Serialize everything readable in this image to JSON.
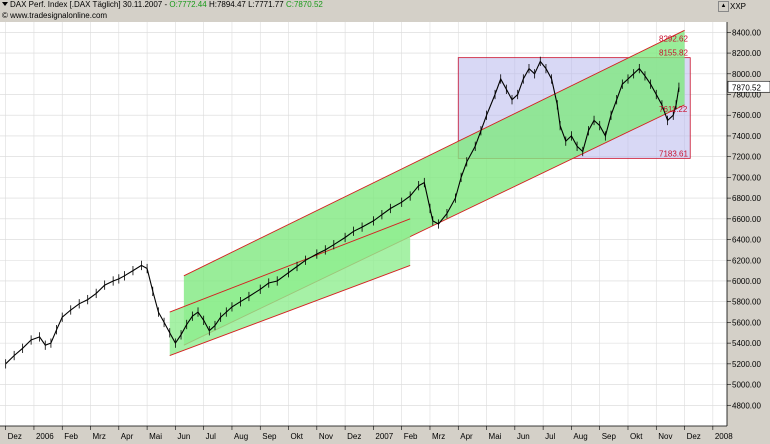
{
  "header": {
    "title": "DAX Perf. Index [.DAX  Täglich] 30.11.2007 - ",
    "open": "O:7772.44",
    "high": "H:7894.47",
    "low": "L:7771.77",
    "close": "C:7870.52",
    "copyright": "© www.tradesignalonline.com",
    "open_color": "#1a9a1a",
    "close_color": "#1a9a1a"
  },
  "scale_label": "XXP",
  "scroll_up_label": "▲",
  "last_price_label": "7870.52",
  "chart_data": {
    "type": "line",
    "title": "DAX Perf. Index [.DAX  Täglich] 30.11.2007",
    "ylim": [
      4600,
      8500
    ],
    "y_ticks": [
      4800,
      5000,
      5200,
      5400,
      5600,
      5800,
      6000,
      6200,
      6400,
      6600,
      6800,
      7000,
      7200,
      7400,
      7600,
      7800,
      8000,
      8200,
      8400
    ],
    "x_ticks": [
      {
        "label": "Dez",
        "t": 0
      },
      {
        "label": "2006",
        "t": 1
      },
      {
        "label": "Feb",
        "t": 2
      },
      {
        "label": "Mrz",
        "t": 3
      },
      {
        "label": "Apr",
        "t": 4
      },
      {
        "label": "Mai",
        "t": 5
      },
      {
        "label": "Jun",
        "t": 6
      },
      {
        "label": "Jul",
        "t": 7
      },
      {
        "label": "Aug",
        "t": 8
      },
      {
        "label": "Sep",
        "t": 9
      },
      {
        "label": "Okt",
        "t": 10
      },
      {
        "label": "Nov",
        "t": 11
      },
      {
        "label": "Dez",
        "t": 12
      },
      {
        "label": "2007",
        "t": 13
      },
      {
        "label": "Feb",
        "t": 14
      },
      {
        "label": "Mrz",
        "t": 15
      },
      {
        "label": "Apr",
        "t": 16
      },
      {
        "label": "Mai",
        "t": 17
      },
      {
        "label": "Jun",
        "t": 18
      },
      {
        "label": "Jul",
        "t": 19
      },
      {
        "label": "Aug",
        "t": 20
      },
      {
        "label": "Sep",
        "t": 21
      },
      {
        "label": "Okt",
        "t": 22
      },
      {
        "label": "Nov",
        "t": 23
      },
      {
        "label": "Dez",
        "t": 24
      },
      {
        "label": "2008",
        "t": 25
      }
    ],
    "series": [
      {
        "values": [
          [
            0,
            5200
          ],
          [
            0.3,
            5280
          ],
          [
            0.6,
            5350
          ],
          [
            0.9,
            5430
          ],
          [
            1.2,
            5460
          ],
          [
            1.4,
            5380
          ],
          [
            1.6,
            5400
          ],
          [
            1.8,
            5530
          ],
          [
            2.0,
            5650
          ],
          [
            2.3,
            5720
          ],
          [
            2.6,
            5780
          ],
          [
            2.9,
            5820
          ],
          [
            3.2,
            5880
          ],
          [
            3.5,
            5960
          ],
          [
            3.8,
            6000
          ],
          [
            4.0,
            6020
          ],
          [
            4.2,
            6050
          ],
          [
            4.5,
            6100
          ],
          [
            4.8,
            6150
          ],
          [
            5.0,
            6120
          ],
          [
            5.2,
            5900
          ],
          [
            5.4,
            5700
          ],
          [
            5.6,
            5600
          ],
          [
            5.8,
            5500
          ],
          [
            6.0,
            5400
          ],
          [
            6.2,
            5480
          ],
          [
            6.4,
            5580
          ],
          [
            6.6,
            5660
          ],
          [
            6.8,
            5700
          ],
          [
            7.0,
            5620
          ],
          [
            7.2,
            5520
          ],
          [
            7.4,
            5570
          ],
          [
            7.6,
            5650
          ],
          [
            7.8,
            5700
          ],
          [
            8.0,
            5750
          ],
          [
            8.3,
            5800
          ],
          [
            8.6,
            5850
          ],
          [
            9.0,
            5920
          ],
          [
            9.3,
            5980
          ],
          [
            9.6,
            6000
          ],
          [
            10.0,
            6080
          ],
          [
            10.3,
            6140
          ],
          [
            10.6,
            6200
          ],
          [
            11.0,
            6260
          ],
          [
            11.3,
            6300
          ],
          [
            11.6,
            6350
          ],
          [
            12.0,
            6420
          ],
          [
            12.3,
            6480
          ],
          [
            12.6,
            6520
          ],
          [
            13.0,
            6580
          ],
          [
            13.3,
            6640
          ],
          [
            13.6,
            6700
          ],
          [
            14.0,
            6760
          ],
          [
            14.3,
            6820
          ],
          [
            14.6,
            6920
          ],
          [
            14.8,
            6950
          ],
          [
            15.0,
            6700
          ],
          [
            15.1,
            6580
          ],
          [
            15.3,
            6550
          ],
          [
            15.6,
            6650
          ],
          [
            15.9,
            6800
          ],
          [
            16.1,
            7000
          ],
          [
            16.3,
            7150
          ],
          [
            16.6,
            7300
          ],
          [
            16.8,
            7450
          ],
          [
            17.0,
            7600
          ],
          [
            17.3,
            7800
          ],
          [
            17.5,
            7950
          ],
          [
            17.7,
            7850
          ],
          [
            17.9,
            7750
          ],
          [
            18.1,
            7800
          ],
          [
            18.3,
            7950
          ],
          [
            18.5,
            8050
          ],
          [
            18.7,
            8000
          ],
          [
            18.9,
            8120
          ],
          [
            19.1,
            8050
          ],
          [
            19.3,
            7950
          ],
          [
            19.5,
            7700
          ],
          [
            19.6,
            7500
          ],
          [
            19.8,
            7350
          ],
          [
            20.0,
            7400
          ],
          [
            20.2,
            7300
          ],
          [
            20.4,
            7250
          ],
          [
            20.6,
            7450
          ],
          [
            20.8,
            7550
          ],
          [
            21.0,
            7500
          ],
          [
            21.2,
            7400
          ],
          [
            21.4,
            7600
          ],
          [
            21.6,
            7750
          ],
          [
            21.8,
            7900
          ],
          [
            22.0,
            7950
          ],
          [
            22.2,
            8000
          ],
          [
            22.4,
            8050
          ],
          [
            22.6,
            7980
          ],
          [
            22.8,
            7900
          ],
          [
            23.0,
            7800
          ],
          [
            23.2,
            7700
          ],
          [
            23.4,
            7550
          ],
          [
            23.6,
            7600
          ],
          [
            23.7,
            7700
          ],
          [
            23.8,
            7870
          ]
        ]
      }
    ],
    "annotations": [
      {
        "text": "8292.62",
        "value": 8292.62,
        "color": "#c8102e"
      },
      {
        "text": "8155.82",
        "value": 8155.82,
        "color": "#c8102e"
      },
      {
        "text": "7611.22",
        "value": 7611.22,
        "color": "#c8102e"
      },
      {
        "text": "7183.61",
        "value": 7183.61,
        "color": "#c8102e"
      }
    ],
    "price_box": {
      "t0": 16.0,
      "t1": 24.2,
      "y_top": 8155.82,
      "y_bottom": 7183.61,
      "fill": "#b8b8ec"
    },
    "channels": [
      {
        "name": "main",
        "fill": "#80e880",
        "lower": [
          [
            6.3,
            5380
          ],
          [
            24.0,
            7700
          ]
        ],
        "upper": [
          [
            6.3,
            6050
          ],
          [
            24.0,
            8420
          ]
        ]
      },
      {
        "name": "inner",
        "fill": "#90ee90",
        "lower": [
          [
            5.8,
            5280
          ],
          [
            14.3,
            6150
          ]
        ],
        "upper": [
          [
            5.8,
            5700
          ],
          [
            14.3,
            6600
          ]
        ]
      }
    ]
  }
}
